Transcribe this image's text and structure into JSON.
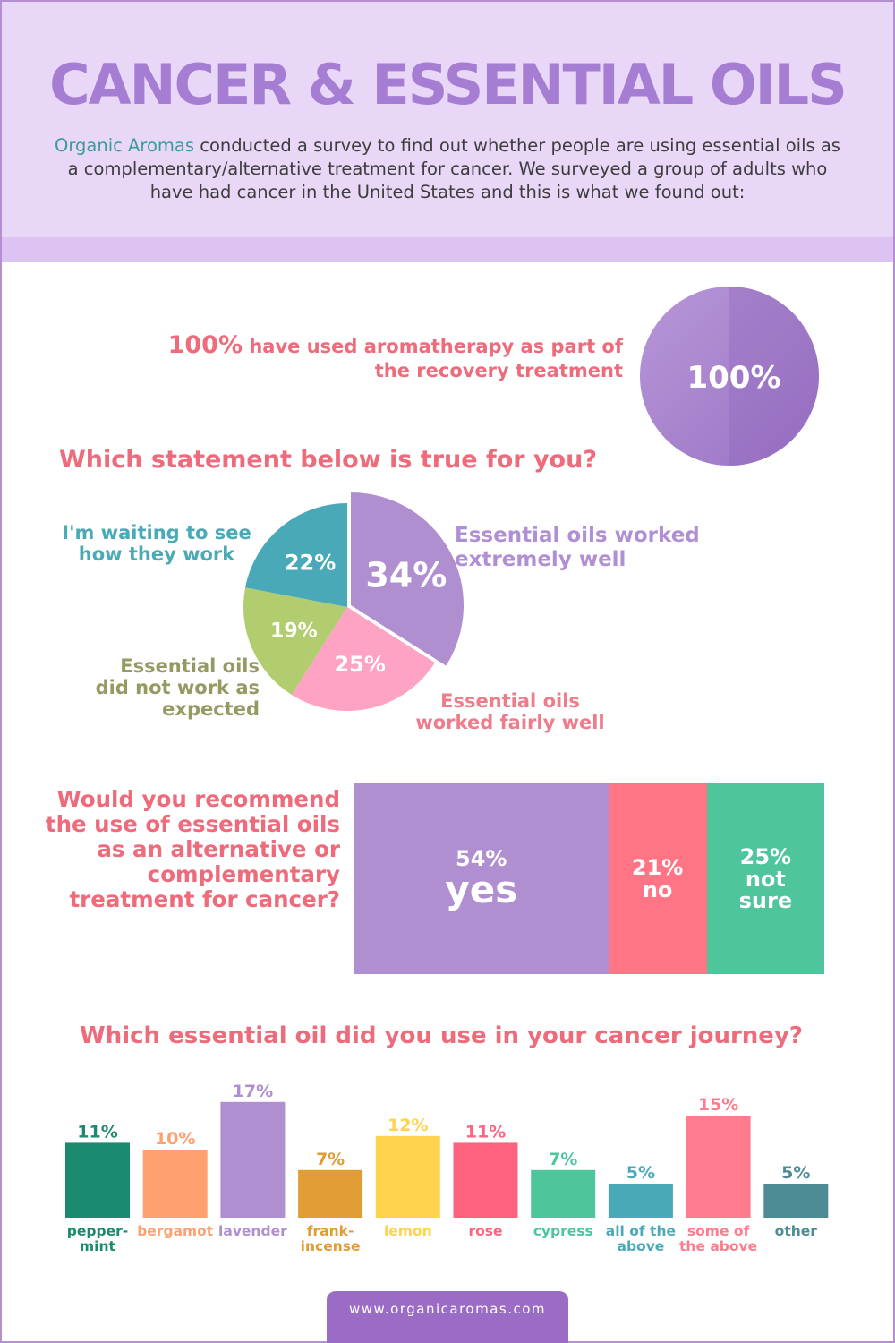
{
  "title": "CANCER & ESSENTIAL OILS",
  "intro": {
    "brand": "Organic Aromas",
    "text_1": " conducted a survey to find out whether people are using essential oils as a complementary/alternative treatment for cancer. We surveyed a group of adults who have had cancer in the United States and this is what we found out:"
  },
  "stat_100": {
    "percent": "100%",
    "text": " have used aromatherapy as part of the recovery treatment",
    "circle_label": "100%"
  },
  "question_statement": "Which statement below is true for you?",
  "question_recommend": "Would you recommend the use of essential oils as an alternative or complementary treatment for cancer?",
  "question_oil": "Which essential oil did you use in your cancer journey?",
  "footer_url": "www.organicaromas.com",
  "colors": {
    "purple": "#b08fd0",
    "pink": "#ffa3c4",
    "green": "#b1cd70",
    "teal": "#4aa9b9",
    "coral": "#ff7585",
    "mint": "#4fc59c"
  },
  "chart_data": [
    {
      "type": "pie",
      "categories": [
        "100%"
      ],
      "values": [
        100
      ]
    },
    {
      "type": "pie",
      "title": "Which statement below is true for you?",
      "categories": [
        "Essential oils worked extremely well",
        "Essential oils worked fairly well",
        "Essential oils did not work as expected",
        "I'm waiting to see how they work"
      ],
      "values": [
        34,
        25,
        19,
        22
      ],
      "value_labels": [
        "34%",
        "25%",
        "19%",
        "22%"
      ],
      "colors": [
        "#b08fd0",
        "#ffa3c4",
        "#b1cd70",
        "#4aa9b9"
      ]
    },
    {
      "type": "bar",
      "title": "Would you recommend the use of essential oils as an alternative or complementary treatment for cancer?",
      "categories": [
        "yes",
        "no",
        "not sure"
      ],
      "values": [
        54,
        21,
        25
      ],
      "value_labels": [
        "54%",
        "21%",
        "25%"
      ],
      "colors": [
        "#b08fd0",
        "#ff7585",
        "#4fc59c"
      ]
    },
    {
      "type": "bar",
      "title": "Which essential oil did you use in your cancer journey?",
      "categories": [
        "pepper-mint",
        "bergamot",
        "lavender",
        "frank-incense",
        "lemon",
        "rose",
        "cypress",
        "all of the above",
        "some of the above",
        "other"
      ],
      "label_lines": [
        [
          "pepper-",
          "mint"
        ],
        [
          "bergamot"
        ],
        [
          "lavender"
        ],
        [
          "frank-",
          "incense"
        ],
        [
          "lemon"
        ],
        [
          "rose"
        ],
        [
          "cypress"
        ],
        [
          "all of the",
          "above"
        ],
        [
          "some of",
          "the above"
        ],
        [
          "other"
        ]
      ],
      "values": [
        11,
        10,
        17,
        7,
        12,
        11,
        7,
        5,
        15,
        5
      ],
      "value_labels": [
        "11%",
        "10%",
        "17%",
        "7%",
        "12%",
        "11%",
        "7%",
        "5%",
        "15%",
        "5%"
      ],
      "colors": [
        "#1c8a6e",
        "#ffa070",
        "#b08fd0",
        "#e09c35",
        "#ffd34e",
        "#ff637d",
        "#4fc59c",
        "#4aa9b9",
        "#ff7b8d",
        "#4e8b95"
      ]
    }
  ]
}
